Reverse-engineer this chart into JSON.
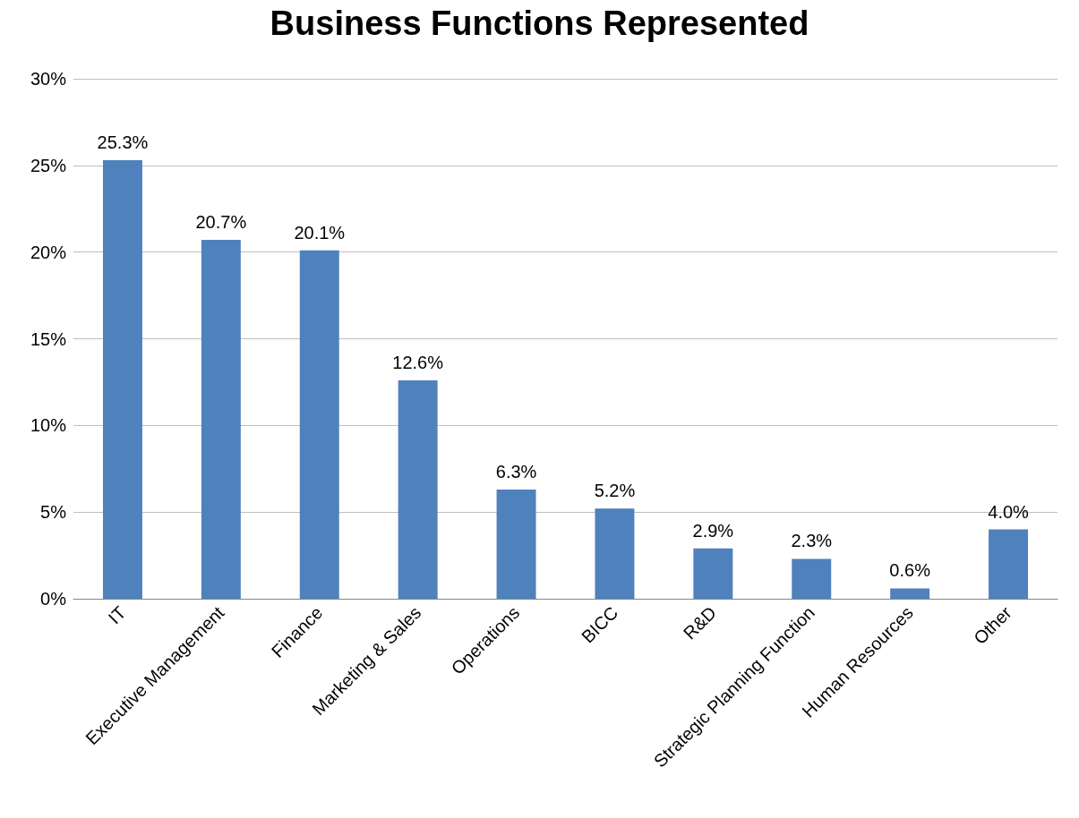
{
  "chart_data": {
    "type": "bar",
    "title": "Business Functions Represented",
    "categories": [
      "IT",
      "Executive Management",
      "Finance",
      "Marketing & Sales",
      "Operations",
      "BICC",
      "R&D",
      "Strategic Planning Function",
      "Human Resources",
      "Other"
    ],
    "values": [
      25.3,
      20.7,
      20.1,
      12.6,
      6.3,
      5.2,
      2.9,
      2.3,
      0.6,
      4.0
    ],
    "value_labels": [
      "25.3%",
      "20.7%",
      "20.1%",
      "12.6%",
      "6.3%",
      "5.2%",
      "2.9%",
      "2.3%",
      "0.6%",
      "4.0%"
    ],
    "color": "#4f81bd",
    "ylim": [
      0,
      30
    ],
    "yticks": [
      {
        "value": 0,
        "label": "0%"
      },
      {
        "value": 5,
        "label": "5%"
      },
      {
        "value": 10,
        "label": "10%"
      },
      {
        "value": 15,
        "label": "15%"
      },
      {
        "value": 20,
        "label": "20%"
      },
      {
        "value": 25,
        "label": "25%"
      },
      {
        "value": 30,
        "label": "30%"
      }
    ],
    "grid": "y"
  }
}
